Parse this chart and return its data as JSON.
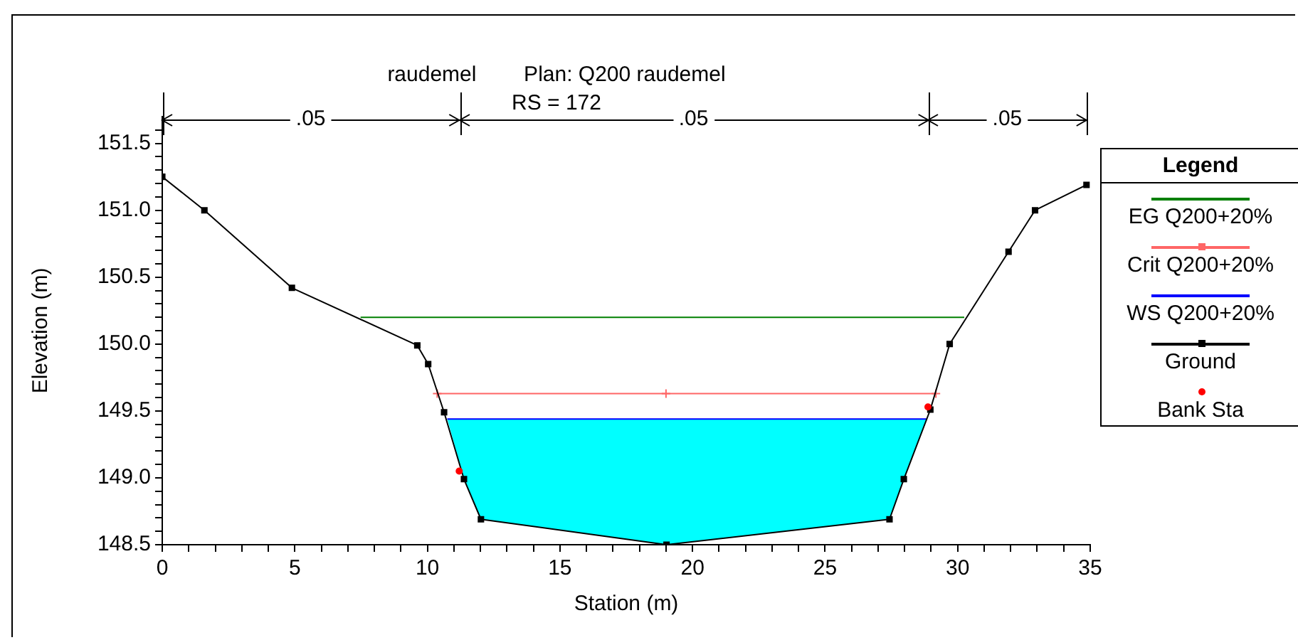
{
  "chart_data": {
    "type": "line",
    "title": "raudemel        Plan: Q200 raudemel",
    "subtitle": "RS = 172",
    "xlabel": "Station (m)",
    "ylabel": "Elevation (m)",
    "legend_title": "Legend",
    "legend": "right",
    "grid": false,
    "annotations": [
      ".05",
      ".05",
      ".05"
    ],
    "xlim": [
      0,
      35
    ],
    "ylim": [
      148.5,
      151.7
    ],
    "xticks": [
      0,
      {
        "value": 1,
        "label": null
      },
      {
        "value": 2,
        "label": null
      },
      {
        "value": 3,
        "label": null
      },
      {
        "value": 4,
        "label": null
      },
      5,
      {
        "value": 6,
        "label": null
      },
      {
        "value": 7,
        "label": null
      },
      {
        "value": 8,
        "label": null
      },
      {
        "value": 9,
        "label": null
      },
      10,
      {
        "value": 11,
        "label": null
      },
      {
        "value": 12,
        "label": null
      },
      {
        "value": 13,
        "label": null
      },
      {
        "value": 14,
        "label": null
      },
      15,
      {
        "value": 16,
        "label": null
      },
      {
        "value": 17,
        "label": null
      },
      {
        "value": 18,
        "label": null
      },
      {
        "value": 19,
        "label": null
      },
      20,
      {
        "value": 21,
        "label": null
      },
      {
        "value": 22,
        "label": null
      },
      {
        "value": 23,
        "label": null
      },
      {
        "value": 24,
        "label": null
      },
      25,
      {
        "value": 26,
        "label": null
      },
      {
        "value": 27,
        "label": null
      },
      {
        "value": 28,
        "label": null
      },
      {
        "value": 29,
        "label": null
      },
      30,
      {
        "value": 31,
        "label": null
      },
      {
        "value": 32,
        "label": null
      },
      {
        "value": 33,
        "label": null
      },
      {
        "value": 34,
        "label": null
      },
      35
    ],
    "yticks": [
      {
        "value": 148.5,
        "label": "148.5"
      },
      {
        "value": 148.6,
        "label": null
      },
      {
        "value": 148.7,
        "label": null
      },
      {
        "value": 148.8,
        "label": null
      },
      {
        "value": 148.9,
        "label": null
      },
      {
        "value": 149,
        "label": "149.0"
      },
      {
        "value": 149.1,
        "label": null
      },
      {
        "value": 149.2,
        "label": null
      },
      {
        "value": 149.3,
        "label": null
      },
      {
        "value": 149.4,
        "label": null
      },
      {
        "value": 149.5,
        "label": "149.5"
      },
      {
        "value": 149.6,
        "label": null
      },
      {
        "value": 149.7,
        "label": null
      },
      {
        "value": 149.8,
        "label": null
      },
      {
        "value": 149.9,
        "label": null
      },
      {
        "value": 150,
        "label": "150.0"
      },
      {
        "value": 150.1,
        "label": null
      },
      {
        "value": 150.2,
        "label": null
      },
      {
        "value": 150.3,
        "label": null
      },
      {
        "value": 150.4,
        "label": null
      },
      {
        "value": 150.5,
        "label": "150.5"
      },
      {
        "value": 150.6,
        "label": null
      },
      {
        "value": 150.7,
        "label": null
      },
      {
        "value": 150.8,
        "label": null
      },
      {
        "value": 150.9,
        "label": null
      },
      {
        "value": 151,
        "label": "151.0"
      },
      {
        "value": 151.1,
        "label": null
      },
      {
        "value": 151.2,
        "label": null
      },
      {
        "value": 151.3,
        "label": null
      },
      {
        "value": 151.4,
        "label": null
      },
      {
        "value": 151.5,
        "label": "151.5"
      },
      {
        "value": 151.6,
        "label": null
      }
    ],
    "series": [
      {
        "name": "EG Q200+20%",
        "color": "#008000",
        "marker": "none",
        "x": [
          7.48,
          30.25
        ],
        "values": [
          150.2,
          150.2
        ]
      },
      {
        "name": "Crit Q200+20%",
        "color": "#ff6666",
        "marker": "cross",
        "x": [
          10.37,
          19.0,
          29.18
        ],
        "values": [
          149.63,
          149.63,
          149.63
        ]
      },
      {
        "name": "WS Q200+20%",
        "color": "#0000ff",
        "marker": "none",
        "x": [
          10.75,
          11.38,
          12.02,
          19.02,
          27.43,
          27.97,
          28.85
        ],
        "values": [
          149.44,
          149.44,
          149.44,
          149.44,
          149.44,
          149.44,
          149.44
        ],
        "lower": [
          149.44,
          148.99,
          148.69,
          148.5,
          148.69,
          148.99,
          149.44
        ],
        "upper": [
          149.44,
          149.44,
          149.44,
          149.44,
          149.44,
          149.44,
          149.44
        ]
      },
      {
        "name": "Ground",
        "color": "#000000",
        "marker": "square",
        "x": [
          0,
          1.59,
          4.89,
          9.62,
          10.03,
          10.63,
          11.38,
          12.02,
          19.02,
          27.43,
          27.97,
          28.97,
          29.7,
          31.92,
          32.92,
          34.86
        ],
        "values": [
          151.25,
          151.0,
          150.42,
          149.99,
          149.85,
          149.49,
          148.99,
          148.69,
          148.5,
          148.69,
          148.99,
          149.51,
          150.0,
          150.69,
          151.0,
          151.19
        ]
      },
      {
        "name": "Bank Sta",
        "type": "scatter",
        "color": "#ff0000",
        "marker": "circle",
        "x": [
          11.2,
          28.88
        ],
        "values": [
          149.05,
          149.53
        ]
      }
    ]
  }
}
